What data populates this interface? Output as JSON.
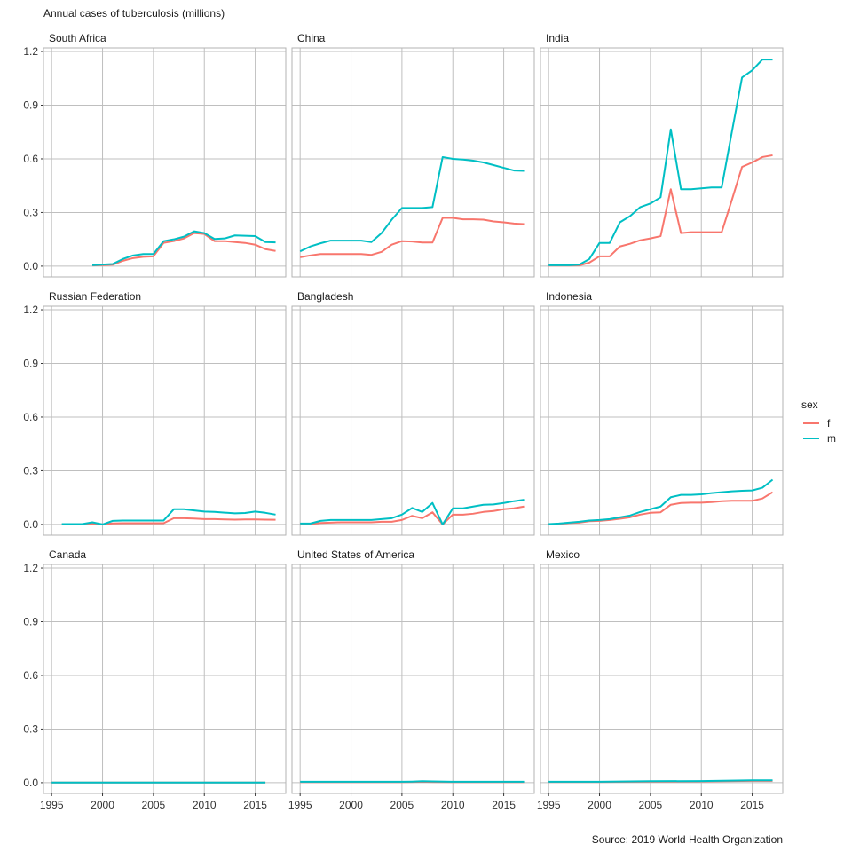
{
  "chart_data": {
    "type": "line",
    "title": "Annual cases of tuberculosis (millions)",
    "caption": "Source: 2019 World Health Organization",
    "xlabel": "",
    "ylabel": "",
    "xlim": [
      1994.2,
      2018
    ],
    "ylim": [
      -0.06,
      1.22
    ],
    "x_ticks": [
      1995,
      2000,
      2005,
      2010,
      2015
    ],
    "y_ticks": [
      0.0,
      0.3,
      0.6,
      0.9,
      1.2
    ],
    "y_tick_labels": [
      "0.0",
      "0.3",
      "0.6",
      "0.9",
      "1.2"
    ],
    "grid": true,
    "legend": {
      "title": "sex",
      "position": "right",
      "entries": [
        {
          "label": "f",
          "color": "#F8766D"
        },
        {
          "label": "m",
          "color": "#00BFC4"
        }
      ]
    },
    "panels": [
      {
        "name": "South Africa",
        "series": [
          {
            "name": "f",
            "x": [
              1999,
              2000,
              2001,
              2002,
              2003,
              2004,
              2005,
              2006,
              2007,
              2008,
              2009,
              2010,
              2011,
              2012,
              2013,
              2014,
              2015,
              2016,
              2017
            ],
            "values": [
              0.004,
              0.006,
              0.008,
              0.03,
              0.045,
              0.052,
              0.055,
              0.13,
              0.14,
              0.155,
              0.185,
              0.18,
              0.14,
              0.14,
              0.135,
              0.13,
              0.12,
              0.095,
              0.085
            ]
          },
          {
            "name": "m",
            "x": [
              1999,
              2000,
              2001,
              2002,
              2003,
              2004,
              2005,
              2006,
              2007,
              2008,
              2009,
              2010,
              2011,
              2012,
              2013,
              2014,
              2015,
              2016,
              2017
            ],
            "values": [
              0.005,
              0.009,
              0.012,
              0.04,
              0.06,
              0.068,
              0.068,
              0.14,
              0.15,
              0.165,
              0.195,
              0.185,
              0.152,
              0.155,
              0.172,
              0.17,
              0.168,
              0.135,
              0.133
            ]
          }
        ]
      },
      {
        "name": "China",
        "series": [
          {
            "name": "f",
            "x": [
              1995,
              1996,
              1997,
              1998,
              1999,
              2000,
              2001,
              2002,
              2003,
              2004,
              2005,
              2006,
              2007,
              2008,
              2009,
              2010,
              2011,
              2012,
              2013,
              2014,
              2015,
              2016,
              2017
            ],
            "values": [
              0.05,
              0.06,
              0.068,
              0.068,
              0.068,
              0.068,
              0.068,
              0.063,
              0.08,
              0.12,
              0.14,
              0.138,
              0.132,
              0.132,
              0.27,
              0.27,
              0.262,
              0.262,
              0.26,
              0.25,
              0.245,
              0.238,
              0.235
            ]
          },
          {
            "name": "m",
            "x": [
              1995,
              1996,
              1997,
              1998,
              1999,
              2000,
              2001,
              2002,
              2003,
              2004,
              2005,
              2006,
              2007,
              2008,
              2009,
              2010,
              2011,
              2012,
              2013,
              2014,
              2015,
              2016,
              2017
            ],
            "values": [
              0.083,
              0.11,
              0.128,
              0.143,
              0.143,
              0.143,
              0.143,
              0.135,
              0.185,
              0.26,
              0.325,
              0.325,
              0.325,
              0.33,
              0.61,
              0.6,
              0.596,
              0.59,
              0.58,
              0.565,
              0.55,
              0.535,
              0.533
            ]
          }
        ]
      },
      {
        "name": "India",
        "series": [
          {
            "name": "f",
            "x": [
              1995,
              1996,
              1997,
              1998,
              1999,
              2000,
              2001,
              2002,
              2003,
              2004,
              2005,
              2006,
              2007,
              2008,
              2009,
              2010,
              2011,
              2012,
              2013,
              2014,
              2015,
              2016,
              2017
            ],
            "values": [
              0.003,
              0.003,
              0.003,
              0.004,
              0.02,
              0.055,
              0.055,
              0.11,
              0.125,
              0.145,
              0.155,
              0.168,
              0.43,
              0.185,
              0.19,
              0.19,
              0.19,
              0.19,
              0.37,
              0.555,
              0.58,
              0.61,
              0.62
            ]
          },
          {
            "name": "m",
            "x": [
              1995,
              1996,
              1997,
              1998,
              1999,
              2000,
              2001,
              2002,
              2003,
              2004,
              2005,
              2006,
              2007,
              2008,
              2009,
              2010,
              2011,
              2012,
              2013,
              2014,
              2015,
              2016,
              2017
            ],
            "values": [
              0.005,
              0.005,
              0.005,
              0.008,
              0.04,
              0.13,
              0.13,
              0.245,
              0.28,
              0.33,
              0.35,
              0.385,
              0.765,
              0.43,
              0.43,
              0.435,
              0.44,
              0.44,
              0.75,
              1.055,
              1.095,
              1.155,
              1.155
            ]
          }
        ]
      },
      {
        "name": "Russian Federation",
        "series": [
          {
            "name": "f",
            "x": [
              1996,
              1997,
              1998,
              1999,
              2000,
              2001,
              2002,
              2003,
              2004,
              2005,
              2006,
              2007,
              2008,
              2009,
              2010,
              2011,
              2012,
              2013,
              2014,
              2015,
              2016,
              2017
            ],
            "values": [
              0.0,
              0.0,
              0.0,
              0.004,
              0.0,
              0.006,
              0.007,
              0.007,
              0.007,
              0.007,
              0.007,
              0.035,
              0.035,
              0.033,
              0.03,
              0.03,
              0.028,
              0.027,
              0.028,
              0.028,
              0.027,
              0.026
            ]
          },
          {
            "name": "m",
            "x": [
              1996,
              1997,
              1998,
              1999,
              2000,
              2001,
              2002,
              2003,
              2004,
              2005,
              2006,
              2007,
              2008,
              2009,
              2010,
              2011,
              2012,
              2013,
              2014,
              2015,
              2016,
              2017
            ],
            "values": [
              0.002,
              0.002,
              0.002,
              0.012,
              0.0,
              0.02,
              0.022,
              0.022,
              0.022,
              0.022,
              0.022,
              0.085,
              0.085,
              0.078,
              0.072,
              0.07,
              0.066,
              0.062,
              0.064,
              0.072,
              0.065,
              0.055
            ]
          }
        ]
      },
      {
        "name": "Bangladesh",
        "series": [
          {
            "name": "f",
            "x": [
              1995,
              1996,
              1997,
              1998,
              1999,
              2000,
              2001,
              2002,
              2003,
              2004,
              2005,
              2006,
              2007,
              2008,
              2009,
              2010,
              2011,
              2012,
              2013,
              2014,
              2015,
              2016,
              2017
            ],
            "values": [
              0.002,
              0.002,
              0.008,
              0.01,
              0.012,
              0.012,
              0.012,
              0.012,
              0.015,
              0.015,
              0.025,
              0.048,
              0.035,
              0.068,
              0.0,
              0.055,
              0.055,
              0.06,
              0.07,
              0.075,
              0.085,
              0.09,
              0.1
            ]
          },
          {
            "name": "m",
            "x": [
              1995,
              1996,
              1997,
              1998,
              1999,
              2000,
              2001,
              2002,
              2003,
              2004,
              2005,
              2006,
              2007,
              2008,
              2009,
              2010,
              2011,
              2012,
              2013,
              2014,
              2015,
              2016,
              2017
            ],
            "values": [
              0.005,
              0.005,
              0.02,
              0.025,
              0.025,
              0.025,
              0.025,
              0.025,
              0.03,
              0.035,
              0.055,
              0.092,
              0.07,
              0.12,
              0.0,
              0.09,
              0.09,
              0.1,
              0.11,
              0.112,
              0.12,
              0.13,
              0.138
            ]
          }
        ]
      },
      {
        "name": "Indonesia",
        "series": [
          {
            "name": "f",
            "x": [
              1995,
              1996,
              1997,
              1998,
              1999,
              2000,
              2001,
              2002,
              2003,
              2004,
              2005,
              2006,
              2007,
              2008,
              2009,
              2010,
              2011,
              2012,
              2013,
              2014,
              2015,
              2016,
              2017
            ],
            "values": [
              0.0,
              0.003,
              0.008,
              0.01,
              0.018,
              0.02,
              0.025,
              0.032,
              0.04,
              0.055,
              0.065,
              0.068,
              0.11,
              0.12,
              0.122,
              0.122,
              0.125,
              0.13,
              0.132,
              0.132,
              0.132,
              0.145,
              0.18
            ]
          },
          {
            "name": "m",
            "x": [
              1995,
              1996,
              1997,
              1998,
              1999,
              2000,
              2001,
              2002,
              2003,
              2004,
              2005,
              2006,
              2007,
              2008,
              2009,
              2010,
              2011,
              2012,
              2013,
              2014,
              2015,
              2016,
              2017
            ],
            "values": [
              0.002,
              0.005,
              0.01,
              0.015,
              0.022,
              0.025,
              0.03,
              0.04,
              0.05,
              0.07,
              0.085,
              0.1,
              0.152,
              0.165,
              0.165,
              0.168,
              0.175,
              0.18,
              0.185,
              0.188,
              0.19,
              0.205,
              0.25
            ]
          }
        ]
      },
      {
        "name": "Canada",
        "series": [
          {
            "name": "f",
            "x": [
              1995,
              2000,
              2005,
              2010,
              2016
            ],
            "values": [
              0.0005,
              0.0005,
              0.0005,
              0.0005,
              0.0005
            ]
          },
          {
            "name": "m",
            "x": [
              1995,
              2000,
              2005,
              2010,
              2016
            ],
            "values": [
              0.0008,
              0.0008,
              0.0008,
              0.0008,
              0.0008
            ]
          }
        ]
      },
      {
        "name": "United States of America",
        "series": [
          {
            "name": "f",
            "x": [
              1995,
              2000,
              2005,
              2006,
              2007,
              2008,
              2010,
              2015,
              2017
            ],
            "values": [
              0.003,
              0.003,
              0.003,
              0.004,
              0.005,
              0.004,
              0.003,
              0.003,
              0.003
            ]
          },
          {
            "name": "m",
            "x": [
              1995,
              2000,
              2005,
              2006,
              2007,
              2008,
              2010,
              2015,
              2017
            ],
            "values": [
              0.005,
              0.005,
              0.005,
              0.006,
              0.008,
              0.007,
              0.005,
              0.005,
              0.005
            ]
          }
        ]
      },
      {
        "name": "Mexico",
        "series": [
          {
            "name": "f",
            "x": [
              1995,
              2000,
              2005,
              2010,
              2015,
              2017
            ],
            "values": [
              0.004,
              0.004,
              0.006,
              0.007,
              0.01,
              0.01
            ]
          },
          {
            "name": "m",
            "x": [
              1995,
              2000,
              2005,
              2010,
              2015,
              2017
            ],
            "values": [
              0.005,
              0.005,
              0.008,
              0.009,
              0.013,
              0.013
            ]
          }
        ]
      }
    ]
  }
}
